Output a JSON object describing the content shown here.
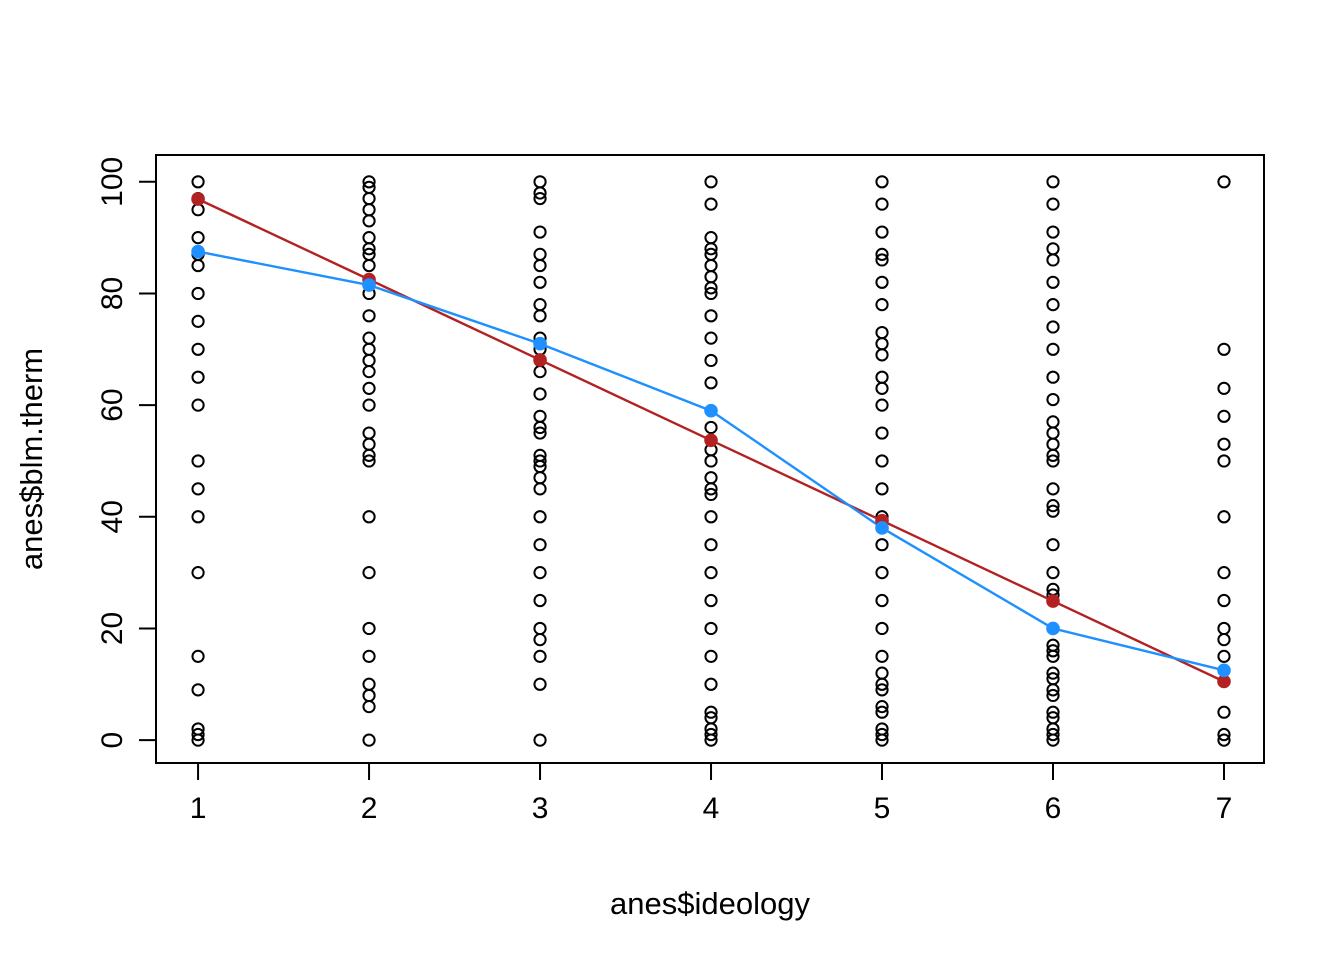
{
  "chart_data": {
    "type": "scatter",
    "title": "",
    "xlabel": "anes$ideology",
    "ylabel": "anes$blm.therm",
    "x_ticks": [
      1,
      2,
      3,
      4,
      5,
      6,
      7
    ],
    "y_ticks": [
      0,
      20,
      40,
      60,
      80,
      100
    ],
    "xlim": [
      0.754,
      7.234
    ],
    "ylim": [
      -4.1,
      104.8
    ],
    "grid": false,
    "legend_position": "none",
    "point_style": "open-circle",
    "colors": {
      "points": "#000000",
      "frame": "#000000",
      "red_line": "#B22222",
      "blue_line": "#1E90FF",
      "background": "#FFFFFF"
    },
    "columns": [
      {
        "x": 1,
        "circles": [
          100,
          97,
          95,
          90,
          87,
          85,
          80,
          75,
          70,
          65,
          60,
          50,
          45,
          40,
          30,
          15,
          9,
          2,
          1,
          0
        ]
      },
      {
        "x": 2,
        "circles": [
          100,
          99,
          97,
          95,
          93,
          90,
          88,
          87,
          85,
          80,
          76,
          72,
          70,
          68,
          66,
          63,
          60,
          55,
          53,
          51,
          50,
          40,
          30,
          20,
          15,
          10,
          8,
          6,
          0
        ]
      },
      {
        "x": 3,
        "circles": [
          100,
          98,
          97,
          91,
          87,
          85,
          82,
          78,
          76,
          72,
          70,
          68,
          66,
          62,
          58,
          56,
          55,
          51,
          50,
          49,
          47,
          45,
          40,
          35,
          30,
          25,
          20,
          18,
          15,
          10,
          0
        ]
      },
      {
        "x": 4,
        "circles": [
          100,
          96,
          90,
          88,
          87,
          85,
          83,
          81,
          80,
          76,
          72,
          68,
          64,
          56,
          52,
          50,
          47,
          45,
          44,
          40,
          35,
          30,
          25,
          20,
          15,
          10,
          5,
          4,
          2,
          1,
          0
        ]
      },
      {
        "x": 5,
        "circles": [
          100,
          96,
          91,
          87,
          86,
          82,
          78,
          73,
          71,
          69,
          65,
          63,
          60,
          55,
          50,
          45,
          40,
          35,
          30,
          25,
          20,
          15,
          12,
          10,
          9,
          6,
          5,
          2,
          1,
          0
        ]
      },
      {
        "x": 6,
        "circles": [
          100,
          96,
          91,
          88,
          86,
          82,
          78,
          74,
          70,
          65,
          61,
          57,
          55,
          53,
          51,
          50,
          45,
          42,
          41,
          35,
          30,
          27,
          26,
          17,
          16,
          15,
          12,
          11,
          9,
          8,
          5,
          4,
          2,
          1,
          0
        ]
      },
      {
        "x": 7,
        "circles": [
          100,
          70,
          63,
          58,
          53,
          50,
          40,
          30,
          25,
          20,
          18,
          15,
          5,
          1,
          0
        ]
      }
    ],
    "series": [
      {
        "name": "red-linear-fit",
        "color": "#B22222",
        "x": [
          1,
          2,
          3,
          4,
          5,
          6,
          7
        ],
        "values": [
          96.9,
          82.5,
          68.1,
          53.7,
          39.3,
          24.9,
          10.5
        ]
      },
      {
        "name": "blue-category-means",
        "color": "#1E90FF",
        "x": [
          1,
          2,
          3,
          4,
          5,
          6,
          7
        ],
        "values": [
          87.5,
          81.5,
          71.0,
          59.0,
          38.0,
          20.0,
          12.5
        ]
      }
    ]
  }
}
